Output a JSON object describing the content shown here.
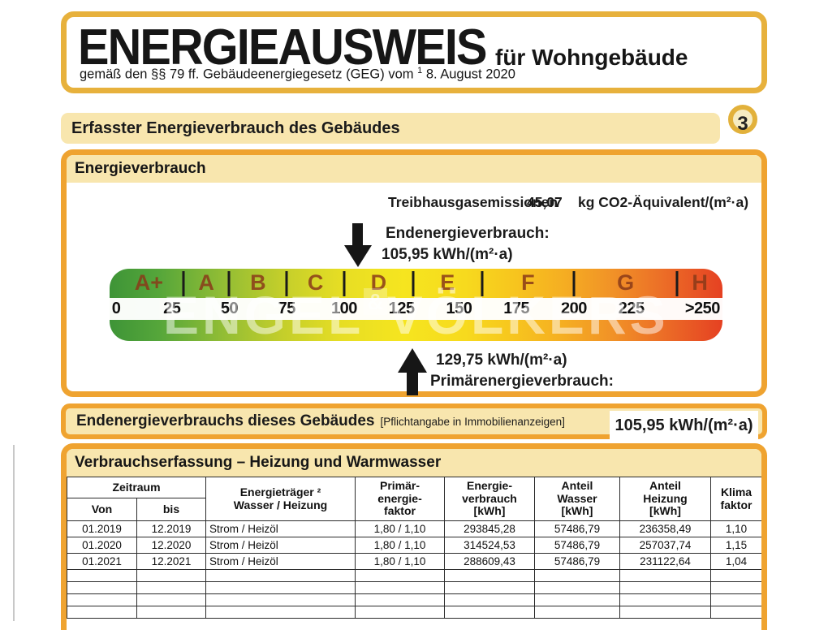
{
  "colors": {
    "panel_border": "#EFA330",
    "header_border": "#E7B13C",
    "strip_cream": "#F8E6AE",
    "badge_ring": "#E2B13B",
    "badge_fill": "#F6ECC2",
    "scale_letter_color": "#8A3A19",
    "scale_gradient": [
      {
        "c": "#3E9437",
        "p": 0
      },
      {
        "c": "#55A63A",
        "p": 8
      },
      {
        "c": "#8FBC35",
        "p": 18
      },
      {
        "c": "#C3CE2B",
        "p": 28
      },
      {
        "c": "#E7DE24",
        "p": 38
      },
      {
        "c": "#F6E51F",
        "p": 48
      },
      {
        "c": "#F7DA1E",
        "p": 58
      },
      {
        "c": "#F7C51E",
        "p": 66
      },
      {
        "c": "#F5AE22",
        "p": 74
      },
      {
        "c": "#F19227",
        "p": 82
      },
      {
        "c": "#EC6F27",
        "p": 90
      },
      {
        "c": "#E54122",
        "p": 100
      }
    ]
  },
  "header": {
    "title": "ENERGIEAUSWEIS",
    "subtitle": "für Wohngebäude",
    "law_prefix": "gemäß den §§ 79 ff. Gebäudeenergiegesetz (GEG) vom ",
    "law_sup": "1",
    "law_suffix": "  8. August 2020"
  },
  "section_bar": {
    "title": "Erfasster Energieverbrauch des Gebäudes",
    "badge": "3"
  },
  "energy_panel": {
    "title": "Energieverbrauch",
    "ghg": {
      "label": "Treibhausgasemissionen",
      "value": "45,07",
      "unit": "kg CO2-Äquivalent/(m²·a)"
    },
    "end_energy": {
      "label": "Endenergieverbrauch:",
      "value": "105,95 kWh/(m²·a)",
      "scale_value": 105.95
    },
    "primary_energy": {
      "label": "Primärenergieverbrauch:",
      "value": "129,75 kWh/(m²·a)",
      "scale_value": 129.75
    },
    "watermark": {
      "left": "ENGEL",
      "amp": "&",
      "right": "VÖLKERS"
    },
    "scale": {
      "max": 264.7,
      "segments": [
        {
          "label": "A+",
          "from": 0,
          "to": 30
        },
        {
          "label": "A",
          "from": 30,
          "to": 50
        },
        {
          "label": "B",
          "from": 50,
          "to": 75
        },
        {
          "label": "C",
          "from": 75,
          "to": 100
        },
        {
          "label": "D",
          "from": 100,
          "to": 130
        },
        {
          "label": "E",
          "from": 130,
          "to": 160
        },
        {
          "label": "F",
          "from": 160,
          "to": 200
        },
        {
          "label": "G",
          "from": 200,
          "to": 245
        },
        {
          "label": "H",
          "from": 245,
          "to": 264.7
        }
      ],
      "ticks": [
        {
          "label": "0",
          "value": 0
        },
        {
          "label": "25",
          "value": 25
        },
        {
          "label": "50",
          "value": 50
        },
        {
          "label": "75",
          "value": 75
        },
        {
          "label": "100",
          "value": 100
        },
        {
          "label": "125",
          "value": 125
        },
        {
          "label": "150",
          "value": 150
        },
        {
          "label": "175",
          "value": 175
        },
        {
          "label": "200",
          "value": 200
        },
        {
          "label": "225",
          "value": 225
        },
        {
          "label": ">250",
          "value": 256
        }
      ]
    }
  },
  "summary_bar": {
    "label": "Endenergieverbrauchs dieses Gebäudes",
    "note": "[Pflichtangabe in Immobilienanzeigen]",
    "value": "105,95 kWh/(m²·a)"
  },
  "consumption_table": {
    "title": "Verbrauchserfassung – Heizung und Warmwasser",
    "header": {
      "zeitraum": "Zeitraum",
      "von": "Von",
      "bis": "bis",
      "energietraeger": "Energieträger ²\nWasser / Heizung",
      "primaerfaktor": "Primär-\nenergie-\nfaktor",
      "energieverbrauch": "Energie-\nverbrauch\n[kWh]",
      "anteil_wasser": "Anteil\nWasser\n[kWh]",
      "anteil_heizung": "Anteil\nHeizung\n[kWh]",
      "klimafaktor": "Klima\nfaktor"
    },
    "rows": [
      [
        "01.2019",
        "12.2019",
        "Strom / Heizöl",
        "1,80 / 1,10",
        "293845,28",
        "57486,79",
        "236358,49",
        "1,10"
      ],
      [
        "01.2020",
        "12.2020",
        "Strom / Heizöl",
        "1,80 / 1,10",
        "314524,53",
        "57486,79",
        "257037,74",
        "1,15"
      ],
      [
        "01.2021",
        "12.2021",
        "Strom / Heizöl",
        "1,80 / 1,10",
        "288609,43",
        "57486,79",
        "231122,64",
        "1,04"
      ]
    ],
    "empty_row_count": 4
  }
}
